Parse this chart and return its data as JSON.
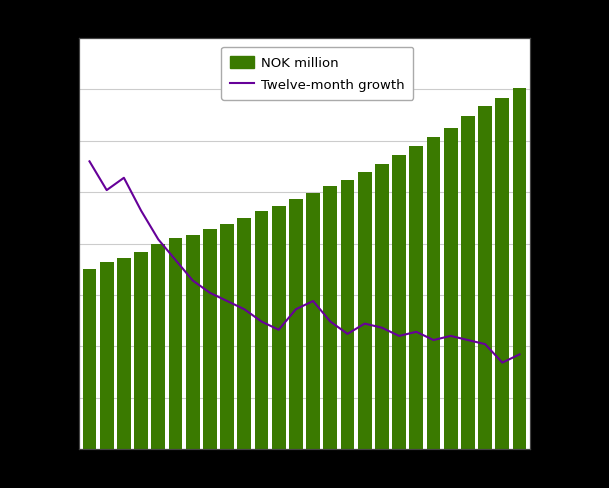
{
  "bar_values": [
    1400,
    1455,
    1490,
    1535,
    1595,
    1645,
    1670,
    1715,
    1755,
    1800,
    1850,
    1890,
    1945,
    1990,
    2045,
    2095,
    2155,
    2220,
    2290,
    2360,
    2430,
    2500,
    2590,
    2670,
    2735,
    2810
  ],
  "line_values": [
    10.5,
    9.8,
    10.1,
    9.3,
    8.6,
    8.1,
    7.6,
    7.3,
    7.1,
    6.9,
    6.6,
    6.4,
    6.9,
    7.1,
    6.6,
    6.3,
    6.55,
    6.45,
    6.25,
    6.35,
    6.15,
    6.25,
    6.15,
    6.05,
    5.6,
    5.8
  ],
  "bar_color": "#3a7a00",
  "line_color": "#660099",
  "outer_bg": "#000000",
  "plot_bg": "#ffffff",
  "grid_color": "#cccccc",
  "legend_nok": "NOK million",
  "legend_growth": "Twelve-month growth",
  "n_bars": 26,
  "bar_width": 0.8,
  "ylim_bar": [
    0,
    3200
  ],
  "ylim_line_min": 3.5,
  "ylim_line_max": 13.5,
  "legend_fontsize": 9.5,
  "line_width": 1.5
}
